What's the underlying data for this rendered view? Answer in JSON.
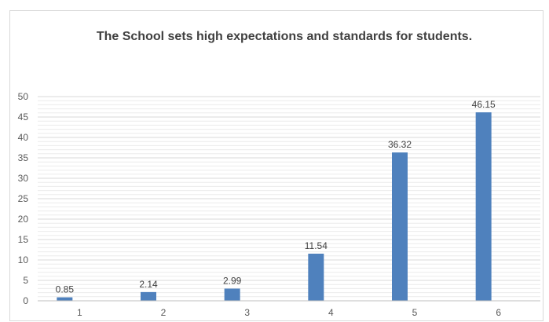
{
  "chart_data": {
    "type": "bar",
    "title": "The School sets high expectations and standards for students.",
    "categories": [
      "1",
      "2",
      "3",
      "4",
      "5",
      "6"
    ],
    "values": [
      0.85,
      2.14,
      2.99,
      11.54,
      36.32,
      46.15
    ],
    "data_labels": [
      "0.85",
      "2.14",
      "2.99",
      "11.54",
      "36.32",
      "46.15"
    ],
    "ylim": [
      0,
      50
    ],
    "yticks": [
      "0",
      "5",
      "10",
      "15",
      "20",
      "25",
      "30",
      "35",
      "40",
      "45",
      "50"
    ],
    "xlabel": "",
    "ylabel": "",
    "grid": true,
    "legend": "none",
    "colors": {
      "bar": "#4f81bd",
      "grid": "#d9d9d9",
      "axis": "#bfbfbf"
    }
  }
}
